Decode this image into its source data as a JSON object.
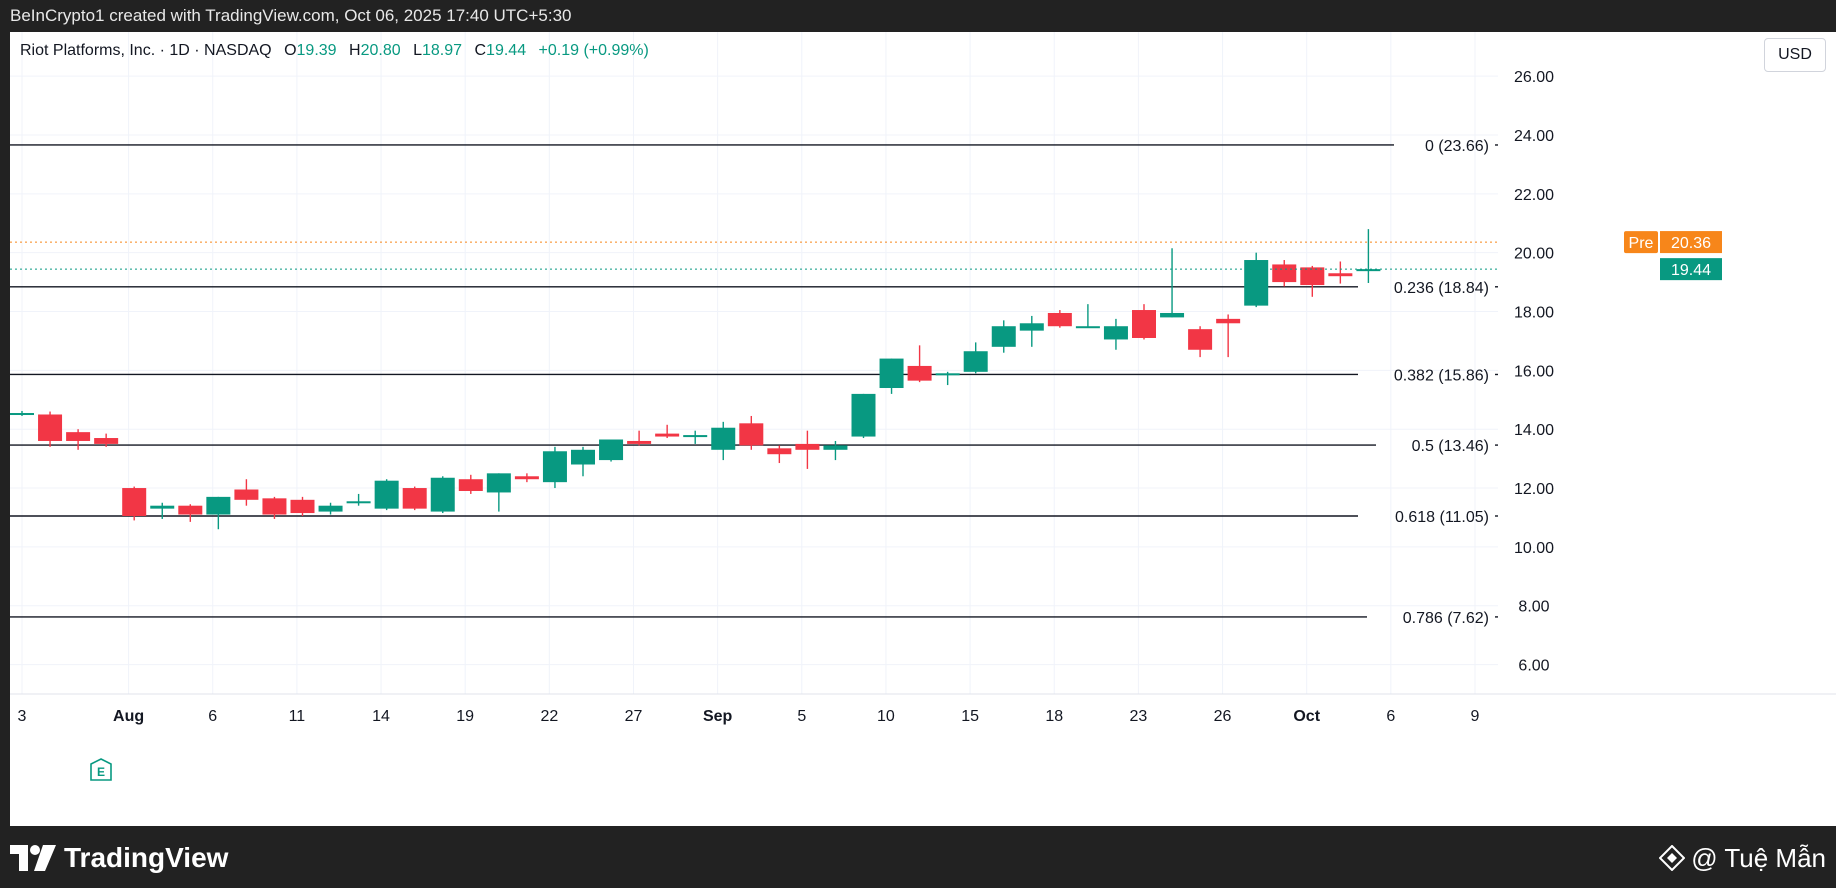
{
  "header": {
    "text": "BeInCrypto1 created with TradingView.com, Oct 06, 2025 17:40 UTC+5:30"
  },
  "legend": {
    "symbol": "Riot Platforms, Inc. · 1D · NASDAQ",
    "o_label": "O",
    "o_value": "19.39",
    "h_label": "H",
    "h_value": "20.80",
    "l_label": "L",
    "l_value": "18.97",
    "c_label": "C",
    "c_value": "19.44",
    "change": "+0.19 (+0.99%)"
  },
  "currency": "USD",
  "earnings_marker": "E",
  "footer": {
    "logo": "TradingView",
    "credit": "@ Tuệ Mẫn"
  },
  "colors": {
    "up": "#089981",
    "down": "#f23645",
    "pre": "#f7861a",
    "grid": "#f0f3fa",
    "fib_line": "#131722",
    "axis_text": "#131722"
  },
  "chart_data": {
    "type": "candlestick",
    "title": "Riot Platforms, Inc. · 1D · NASDAQ",
    "currency": "USD",
    "ylim": [
      5.0,
      27.5
    ],
    "y_ticks": [
      "6.00",
      "8.00",
      "10.00",
      "12.00",
      "14.00",
      "16.00",
      "18.00",
      "20.00",
      "22.00",
      "24.00",
      "26.00"
    ],
    "x_ticks": [
      {
        "label": "3",
        "index": 0,
        "bold": false
      },
      {
        "label": "Aug",
        "index": 3.8,
        "bold": true
      },
      {
        "label": "6",
        "index": 6.8,
        "bold": false
      },
      {
        "label": "11",
        "index": 9.8,
        "bold": false
      },
      {
        "label": "14",
        "index": 12.8,
        "bold": false
      },
      {
        "label": "19",
        "index": 15.8,
        "bold": false
      },
      {
        "label": "22",
        "index": 18.8,
        "bold": false
      },
      {
        "label": "27",
        "index": 21.8,
        "bold": false
      },
      {
        "label": "Sep",
        "index": 24.8,
        "bold": true
      },
      {
        "label": "5",
        "index": 27.8,
        "bold": false
      },
      {
        "label": "10",
        "index": 30.8,
        "bold": false
      },
      {
        "label": "15",
        "index": 33.8,
        "bold": false
      },
      {
        "label": "18",
        "index": 36.8,
        "bold": false
      },
      {
        "label": "23",
        "index": 39.8,
        "bold": false
      },
      {
        "label": "26",
        "index": 42.8,
        "bold": false
      },
      {
        "label": "Oct",
        "index": 45.8,
        "bold": true
      },
      {
        "label": "6",
        "index": 48.8,
        "bold": false
      },
      {
        "label": "9",
        "index": 51.8,
        "bold": false
      }
    ],
    "candles": [
      {
        "o": 14.55,
        "h": 14.62,
        "l": 14.45,
        "c": 14.55
      },
      {
        "o": 14.5,
        "h": 14.6,
        "l": 13.4,
        "c": 13.6
      },
      {
        "o": 13.9,
        "h": 14.0,
        "l": 13.3,
        "c": 13.6
      },
      {
        "o": 13.7,
        "h": 13.85,
        "l": 13.4,
        "c": 13.5
      },
      {
        "o": 12.0,
        "h": 12.05,
        "l": 10.9,
        "c": 11.05
      },
      {
        "o": 11.3,
        "h": 11.5,
        "l": 10.95,
        "c": 11.4
      },
      {
        "o": 11.4,
        "h": 11.45,
        "l": 10.85,
        "c": 11.1
      },
      {
        "o": 11.1,
        "h": 11.7,
        "l": 10.6,
        "c": 11.7
      },
      {
        "o": 11.95,
        "h": 12.3,
        "l": 11.4,
        "c": 11.6
      },
      {
        "o": 11.65,
        "h": 11.7,
        "l": 10.95,
        "c": 11.1
      },
      {
        "o": 11.6,
        "h": 11.7,
        "l": 11.05,
        "c": 11.15
      },
      {
        "o": 11.2,
        "h": 11.5,
        "l": 11.1,
        "c": 11.4
      },
      {
        "o": 11.5,
        "h": 11.8,
        "l": 11.4,
        "c": 11.55
      },
      {
        "o": 11.3,
        "h": 12.3,
        "l": 11.25,
        "c": 12.25
      },
      {
        "o": 12.0,
        "h": 12.05,
        "l": 11.25,
        "c": 11.3
      },
      {
        "o": 11.2,
        "h": 12.4,
        "l": 11.15,
        "c": 12.35
      },
      {
        "o": 12.3,
        "h": 12.45,
        "l": 11.8,
        "c": 11.9
      },
      {
        "o": 11.85,
        "h": 12.5,
        "l": 11.2,
        "c": 12.5
      },
      {
        "o": 12.4,
        "h": 12.5,
        "l": 12.2,
        "c": 12.3
      },
      {
        "o": 12.2,
        "h": 13.4,
        "l": 12.0,
        "c": 13.25
      },
      {
        "o": 12.8,
        "h": 13.4,
        "l": 12.4,
        "c": 13.3
      },
      {
        "o": 12.95,
        "h": 13.65,
        "l": 12.9,
        "c": 13.65
      },
      {
        "o": 13.6,
        "h": 13.95,
        "l": 13.45,
        "c": 13.5
      },
      {
        "o": 13.85,
        "h": 14.15,
        "l": 13.7,
        "c": 13.75
      },
      {
        "o": 13.75,
        "h": 13.95,
        "l": 13.5,
        "c": 13.8
      },
      {
        "o": 13.3,
        "h": 14.25,
        "l": 12.95,
        "c": 14.05
      },
      {
        "o": 14.2,
        "h": 14.45,
        "l": 13.3,
        "c": 13.45
      },
      {
        "o": 13.35,
        "h": 13.45,
        "l": 12.85,
        "c": 13.15
      },
      {
        "o": 13.5,
        "h": 13.95,
        "l": 12.65,
        "c": 13.3
      },
      {
        "o": 13.3,
        "h": 13.6,
        "l": 12.95,
        "c": 13.45
      },
      {
        "o": 13.75,
        "h": 15.2,
        "l": 13.7,
        "c": 15.2
      },
      {
        "o": 15.4,
        "h": 16.4,
        "l": 15.2,
        "c": 16.4
      },
      {
        "o": 16.15,
        "h": 16.85,
        "l": 15.6,
        "c": 15.65
      },
      {
        "o": 15.9,
        "h": 15.95,
        "l": 15.5,
        "c": 15.9
      },
      {
        "o": 15.95,
        "h": 16.95,
        "l": 15.9,
        "c": 16.65
      },
      {
        "o": 16.8,
        "h": 17.7,
        "l": 16.6,
        "c": 17.5
      },
      {
        "o": 17.35,
        "h": 17.85,
        "l": 16.8,
        "c": 17.6
      },
      {
        "o": 17.95,
        "h": 18.05,
        "l": 17.45,
        "c": 17.5
      },
      {
        "o": 17.5,
        "h": 18.25,
        "l": 17.45,
        "c": 17.5
      },
      {
        "o": 17.05,
        "h": 17.75,
        "l": 16.7,
        "c": 17.5
      },
      {
        "o": 18.05,
        "h": 18.25,
        "l": 17.05,
        "c": 17.1
      },
      {
        "o": 17.8,
        "h": 20.15,
        "l": 17.8,
        "c": 17.95
      },
      {
        "o": 17.4,
        "h": 17.5,
        "l": 16.45,
        "c": 16.7
      },
      {
        "o": 17.75,
        "h": 17.9,
        "l": 16.45,
        "c": 17.6
      },
      {
        "o": 18.2,
        "h": 20.0,
        "l": 18.15,
        "c": 19.75
      },
      {
        "o": 19.6,
        "h": 19.75,
        "l": 18.85,
        "c": 19.0
      },
      {
        "o": 19.5,
        "h": 19.55,
        "l": 18.5,
        "c": 18.9
      },
      {
        "o": 19.3,
        "h": 19.7,
        "l": 18.95,
        "c": 19.2
      },
      {
        "o": 19.39,
        "h": 20.8,
        "l": 18.97,
        "c": 19.44
      }
    ],
    "fib_levels": [
      {
        "label": "0 (23.66)",
        "value": 23.66
      },
      {
        "label": "0.236 (18.84)",
        "value": 18.84
      },
      {
        "label": "0.382 (15.86)",
        "value": 15.86
      },
      {
        "label": "0.5 (13.46)",
        "value": 13.46
      },
      {
        "label": "0.618 (11.05)",
        "value": 11.05
      },
      {
        "label": "0.786 (7.62)",
        "value": 7.62
      }
    ],
    "pre_market": {
      "label": "Pre",
      "value": 20.36,
      "text": "20.36"
    },
    "last_price": {
      "value": 19.44,
      "text": "19.44"
    },
    "earnings_index": 2.8
  }
}
